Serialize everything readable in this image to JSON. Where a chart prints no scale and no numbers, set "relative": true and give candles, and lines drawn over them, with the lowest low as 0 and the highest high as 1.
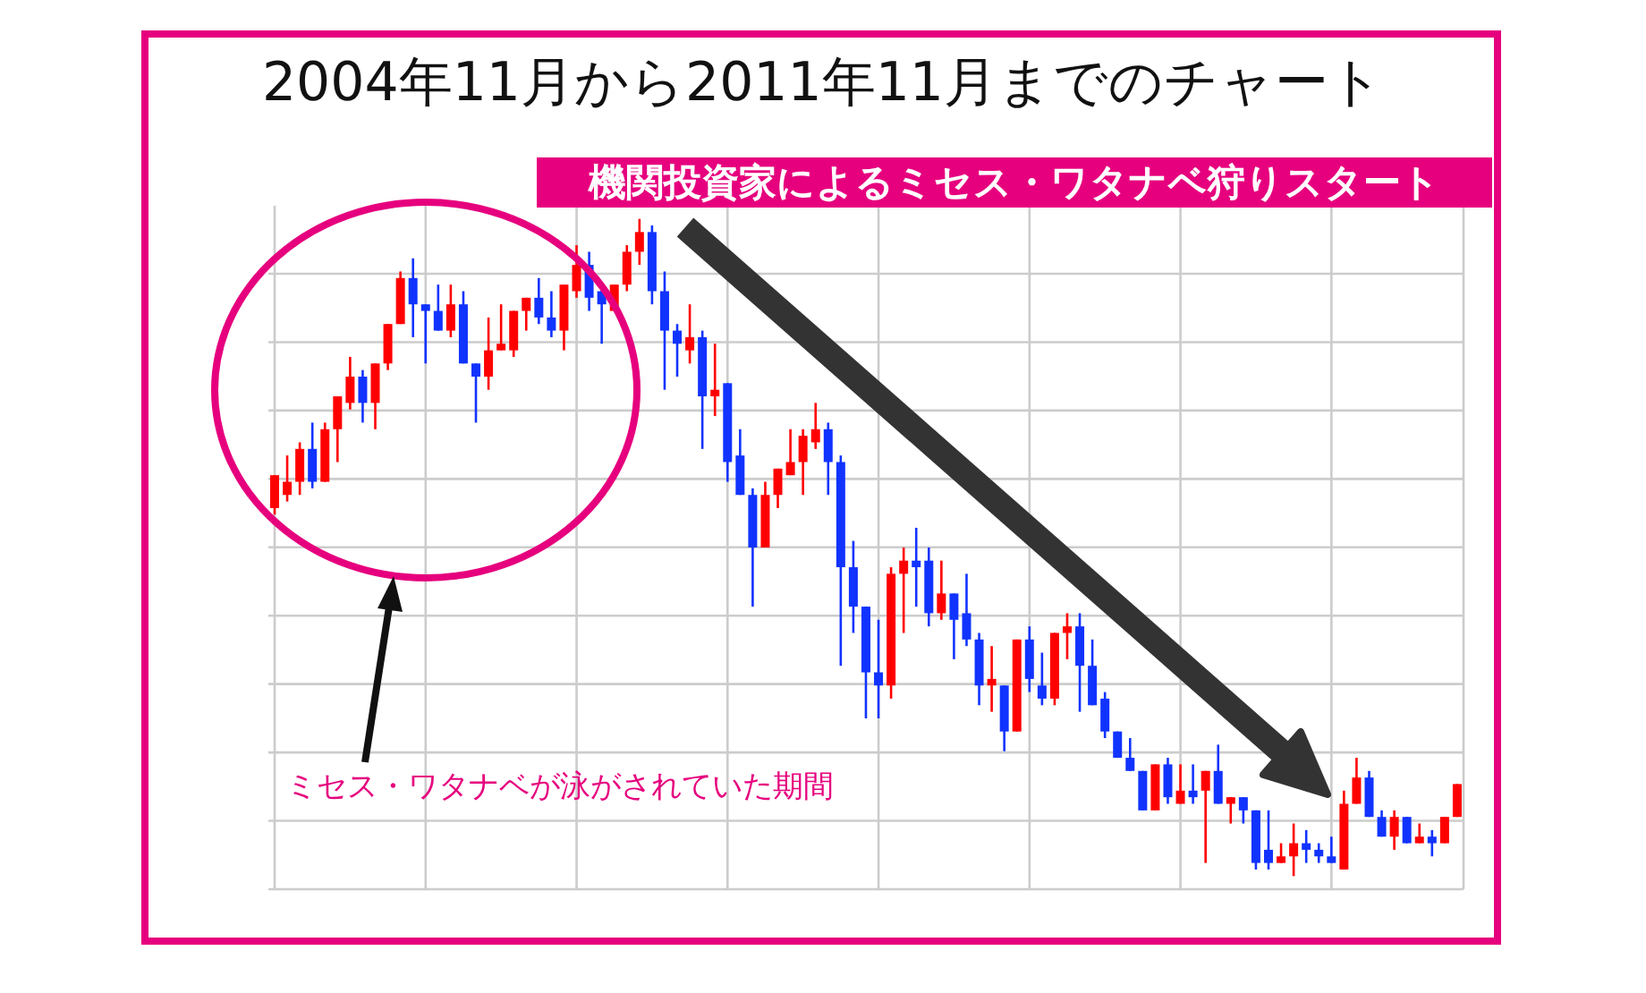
{
  "chart_data": {
    "type": "candlestick",
    "title": "2004年11月から2011年11月までのチャート",
    "relative": true,
    "grid": true,
    "annotations": [
      "機関投資家によるミセス・ワタナベ狩りスタート",
      "ミセス・ワタナベが泳がされていた期間"
    ],
    "categories": [
      null,
      null,
      null,
      null,
      null,
      null,
      null,
      null,
      null,
      null,
      null,
      null,
      null,
      null,
      null,
      null,
      null,
      null,
      null,
      null,
      null,
      null,
      null,
      null,
      null,
      null,
      null,
      null,
      null,
      null,
      null,
      null,
      null,
      null,
      null,
      null,
      null,
      null,
      null,
      null,
      null,
      null,
      null,
      null,
      null,
      null,
      null,
      null,
      null,
      null,
      null,
      null,
      null,
      null,
      null,
      null,
      null,
      null,
      null,
      null,
      null,
      null,
      null,
      null,
      null,
      null,
      null,
      null,
      null,
      null,
      null,
      null,
      null,
      null,
      null,
      null,
      null,
      null,
      null,
      null,
      null,
      null,
      null,
      null,
      null,
      null,
      null,
      null,
      null,
      null,
      null,
      null,
      null,
      null,
      null
    ],
    "ohlc": [
      [
        0.56,
        0.61,
        0.55,
        0.61
      ],
      [
        0.58,
        0.64,
        0.57,
        0.6
      ],
      [
        0.6,
        0.66,
        0.58,
        0.65
      ],
      [
        0.65,
        0.69,
        0.59,
        0.6
      ],
      [
        0.6,
        0.69,
        0.6,
        0.68
      ],
      [
        0.68,
        0.73,
        0.63,
        0.73
      ],
      [
        0.72,
        0.79,
        0.71,
        0.76
      ],
      [
        0.76,
        0.77,
        0.69,
        0.72
      ],
      [
        0.72,
        0.78,
        0.68,
        0.78
      ],
      [
        0.78,
        0.84,
        0.77,
        0.84
      ],
      [
        0.84,
        0.92,
        0.84,
        0.91
      ],
      [
        0.91,
        0.94,
        0.82,
        0.87
      ],
      [
        0.87,
        0.87,
        0.78,
        0.86
      ],
      [
        0.86,
        0.9,
        0.83,
        0.83
      ],
      [
        0.83,
        0.9,
        0.82,
        0.87
      ],
      [
        0.87,
        0.89,
        0.78,
        0.78
      ],
      [
        0.78,
        0.78,
        0.69,
        0.76
      ],
      [
        0.76,
        0.85,
        0.74,
        0.8
      ],
      [
        0.8,
        0.87,
        0.8,
        0.81
      ],
      [
        0.8,
        0.86,
        0.79,
        0.86
      ],
      [
        0.86,
        0.88,
        0.83,
        0.88
      ],
      [
        0.88,
        0.91,
        0.84,
        0.85
      ],
      [
        0.85,
        0.89,
        0.82,
        0.83
      ],
      [
        0.83,
        0.9,
        0.8,
        0.9
      ],
      [
        0.89,
        0.96,
        0.88,
        0.93
      ],
      [
        0.93,
        0.95,
        0.86,
        0.88
      ],
      [
        0.89,
        0.9,
        0.81,
        0.87
      ],
      [
        0.86,
        0.9,
        0.86,
        0.9
      ],
      [
        0.9,
        0.96,
        0.89,
        0.95
      ],
      [
        0.95,
        1,
        0.93,
        0.98
      ],
      [
        0.98,
        0.99,
        0.87,
        0.89
      ],
      [
        0.89,
        0.92,
        0.74,
        0.83
      ],
      [
        0.83,
        0.84,
        0.76,
        0.81
      ],
      [
        0.8,
        0.87,
        0.78,
        0.82
      ],
      [
        0.82,
        0.83,
        0.65,
        0.73
      ],
      [
        0.73,
        0.81,
        0.7,
        0.74
      ],
      [
        0.75,
        0.75,
        0.6,
        0.63
      ],
      [
        0.64,
        0.68,
        0.58,
        0.58
      ],
      [
        0.58,
        0.59,
        0.41,
        0.5
      ],
      [
        0.5,
        0.6,
        0.5,
        0.58
      ],
      [
        0.58,
        0.62,
        0.56,
        0.62
      ],
      [
        0.61,
        0.68,
        0.61,
        0.63
      ],
      [
        0.63,
        0.68,
        0.58,
        0.67
      ],
      [
        0.66,
        0.72,
        0.65,
        0.68
      ],
      [
        0.68,
        0.69,
        0.58,
        0.63
      ],
      [
        0.63,
        0.64,
        0.32,
        0.47
      ],
      [
        0.47,
        0.51,
        0.37,
        0.41
      ],
      [
        0.41,
        0.41,
        0.24,
        0.31
      ],
      [
        0.31,
        0.39,
        0.24,
        0.29
      ],
      [
        0.29,
        0.47,
        0.27,
        0.46
      ],
      [
        0.46,
        0.5,
        0.37,
        0.48
      ],
      [
        0.48,
        0.53,
        0.41,
        0.47
      ],
      [
        0.48,
        0.5,
        0.38,
        0.4
      ],
      [
        0.4,
        0.48,
        0.39,
        0.43
      ],
      [
        0.43,
        0.43,
        0.33,
        0.39
      ],
      [
        0.4,
        0.46,
        0.35,
        0.36
      ],
      [
        0.36,
        0.37,
        0.26,
        0.29
      ],
      [
        0.29,
        0.35,
        0.25,
        0.3
      ],
      [
        0.29,
        0.29,
        0.19,
        0.22
      ],
      [
        0.22,
        0.36,
        0.22,
        0.36
      ],
      [
        0.36,
        0.38,
        0.28,
        0.3
      ],
      [
        0.29,
        0.34,
        0.26,
        0.27
      ],
      [
        0.27,
        0.37,
        0.26,
        0.37
      ],
      [
        0.37,
        0.4,
        0.33,
        0.38
      ],
      [
        0.38,
        0.4,
        0.25,
        0.32
      ],
      [
        0.32,
        0.36,
        0.26,
        0.26
      ],
      [
        0.27,
        0.28,
        0.21,
        0.22
      ],
      [
        0.22,
        0.22,
        0.18,
        0.18
      ],
      [
        0.18,
        0.21,
        0.16,
        0.16
      ],
      [
        0.16,
        0.16,
        0.1,
        0.1
      ],
      [
        0.1,
        0.17,
        0.1,
        0.17
      ],
      [
        0.17,
        0.18,
        0.11,
        0.12
      ],
      [
        0.11,
        0.17,
        0.11,
        0.13
      ],
      [
        0.13,
        0.17,
        0.11,
        0.12
      ],
      [
        0.13,
        0.16,
        0.02,
        0.16
      ],
      [
        0.16,
        0.2,
        0.11,
        0.11
      ],
      [
        0.11,
        0.12,
        0.08,
        0.12
      ],
      [
        0.12,
        0.12,
        0.08,
        0.1
      ],
      [
        0.1,
        0.1,
        0.01,
        0.02
      ],
      [
        0.04,
        0.1,
        0.01,
        0.02
      ],
      [
        0.02,
        0.05,
        0.02,
        0.03
      ],
      [
        0.03,
        0.08,
        0,
        0.05
      ],
      [
        0.05,
        0.07,
        0.02,
        0.04
      ],
      [
        0.04,
        0.05,
        0.02,
        0.03
      ],
      [
        0.03,
        0.06,
        0.02,
        0.02
      ],
      [
        0.01,
        0.13,
        0.01,
        0.11
      ],
      [
        0.11,
        0.18,
        0.11,
        0.15
      ],
      [
        0.15,
        0.16,
        0.09,
        0.09
      ],
      [
        0.09,
        0.1,
        0.06,
        0.06
      ],
      [
        0.06,
        0.1,
        0.04,
        0.09
      ],
      [
        0.09,
        0.09,
        0.05,
        0.05
      ],
      [
        0.05,
        0.08,
        0.05,
        0.06
      ],
      [
        0.06,
        0.07,
        0.03,
        0.05
      ],
      [
        0.05,
        0.09,
        0.05,
        0.09
      ],
      [
        0.09,
        0.14,
        0.09,
        0.14
      ]
    ],
    "colors": [
      "#ff0000",
      "#ff0000",
      "#ff0000",
      "#1133ff",
      "#ff0000",
      "#ff0000",
      "#ff0000",
      "#1133ff",
      "#ff0000",
      "#ff0000",
      "#ff0000",
      "#1133ff",
      "#1133ff",
      "#1133ff",
      "#ff0000",
      "#1133ff",
      "#1133ff",
      "#ff0000",
      "#ff0000",
      "#ff0000",
      "#ff0000",
      "#1133ff",
      "#1133ff",
      "#ff0000",
      "#ff0000",
      "#1133ff",
      "#1133ff",
      "#ff0000",
      "#ff0000",
      "#ff0000",
      "#1133ff",
      "#1133ff",
      "#1133ff",
      "#ff0000",
      "#1133ff",
      "#ff0000",
      "#1133ff",
      "#1133ff",
      "#1133ff",
      "#ff0000",
      "#ff0000",
      "#ff0000",
      "#ff0000",
      "#ff0000",
      "#1133ff",
      "#1133ff",
      "#1133ff",
      "#1133ff",
      "#1133ff",
      "#ff0000",
      "#ff0000",
      "#1133ff",
      "#1133ff",
      "#ff0000",
      "#1133ff",
      "#1133ff",
      "#1133ff",
      "#ff0000",
      "#1133ff",
      "#ff0000",
      "#1133ff",
      "#1133ff",
      "#ff0000",
      "#ff0000",
      "#1133ff",
      "#1133ff",
      "#1133ff",
      "#1133ff",
      "#1133ff",
      "#1133ff",
      "#ff0000",
      "#1133ff",
      "#ff0000",
      "#1133ff",
      "#ff0000",
      "#1133ff",
      "#ff0000",
      "#1133ff",
      "#1133ff",
      "#1133ff",
      "#ff0000",
      "#ff0000",
      "#1133ff",
      "#1133ff",
      "#1133ff",
      "#ff0000",
      "#ff0000",
      "#1133ff",
      "#1133ff",
      "#ff0000",
      "#1133ff",
      "#ff0000",
      "#1133ff",
      "#ff0000",
      "#ff0000"
    ]
  }
}
